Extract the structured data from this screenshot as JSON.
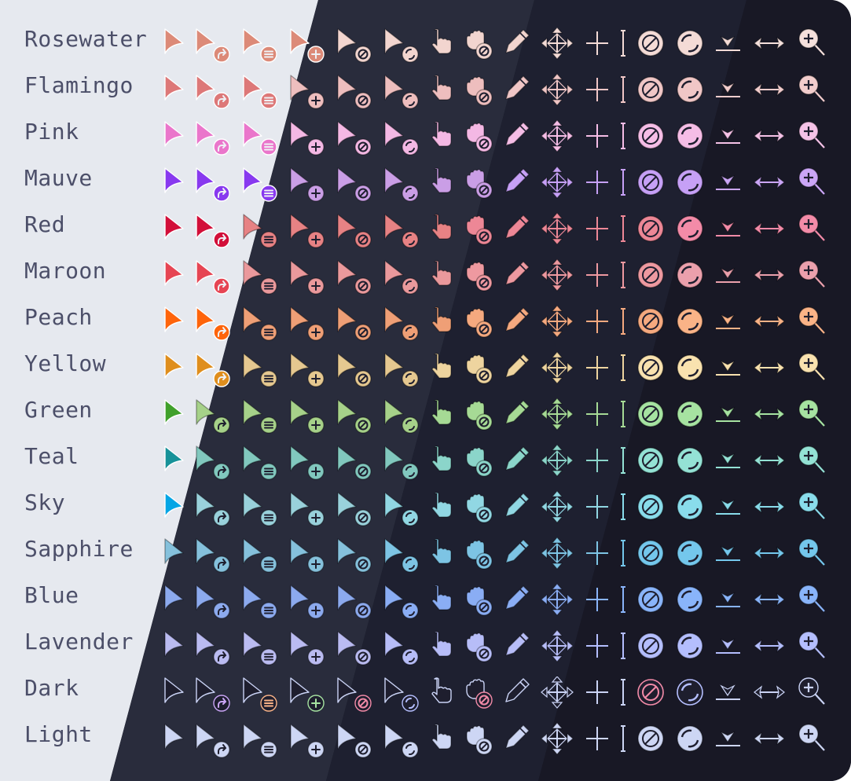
{
  "backgrounds": {
    "latte": "#e6e9ef",
    "frappe": "#292c3c",
    "macchiato": "#1e2030",
    "mocha": "#181825"
  },
  "label_color": "#4c4f69",
  "columns": [
    "arrow",
    "arrow-redo",
    "arrow-menu",
    "arrow-plus",
    "arrow-not-allowed",
    "arrow-progress",
    "pointing-hand",
    "grab-not-allowed",
    "pencil",
    "move",
    "crosshair",
    "text-beam",
    "not-allowed",
    "progress",
    "bottom-edge",
    "ew-resize",
    "zoom-in"
  ],
  "dark_accents": {
    "arrow-redo": "#cba6f7",
    "arrow-menu": "#fab387",
    "arrow-plus": "#a6e3a1",
    "arrow-not-allowed": "#f38ba8",
    "arrow-progress": "#b4befe",
    "grab-not-allowed": "#f38ba8",
    "not-allowed": "#f38ba8",
    "progress": "#b4befe"
  },
  "rows": [
    {
      "label": "Rosewater",
      "colors": {
        "latte": "#dc8a78",
        "frappe": "#f2d5cf",
        "macchiato": "#f4dbd6",
        "mocha": "#f5e0dc"
      }
    },
    {
      "label": "Flamingo",
      "colors": {
        "latte": "#dd7878",
        "frappe": "#eebebe",
        "macchiato": "#f0c6c6",
        "mocha": "#f2cdcd"
      }
    },
    {
      "label": "Pink",
      "colors": {
        "latte": "#ea76cb",
        "frappe": "#f4b8e4",
        "macchiato": "#f5bde6",
        "mocha": "#f5c2e7"
      }
    },
    {
      "label": "Mauve",
      "colors": {
        "latte": "#8839ef",
        "frappe": "#ca9ee6",
        "macchiato": "#c6a0f6",
        "mocha": "#cba6f7"
      }
    },
    {
      "label": "Red",
      "colors": {
        "latte": "#d20f39",
        "frappe": "#e78284",
        "macchiato": "#ed8796",
        "mocha": "#f38ba8"
      }
    },
    {
      "label": "Maroon",
      "colors": {
        "latte": "#e64553",
        "frappe": "#ea999c",
        "macchiato": "#ee99a0",
        "mocha": "#eba0ac"
      }
    },
    {
      "label": "Peach",
      "colors": {
        "latte": "#fe640b",
        "frappe": "#ef9f76",
        "macchiato": "#f5a97f",
        "mocha": "#fab387"
      }
    },
    {
      "label": "Yellow",
      "colors": {
        "latte": "#df8e1d",
        "frappe": "#e5c890",
        "macchiato": "#eed49f",
        "mocha": "#f9e2af"
      }
    },
    {
      "label": "Green",
      "colors": {
        "latte": "#40a02b",
        "frappe": "#a6d189",
        "macchiato": "#a6da95",
        "mocha": "#a6e3a1"
      }
    },
    {
      "label": "Teal",
      "colors": {
        "latte": "#179299",
        "frappe": "#81c8be",
        "macchiato": "#8bd5ca",
        "mocha": "#94e2d5"
      }
    },
    {
      "label": "Sky",
      "colors": {
        "latte": "#04a5e5",
        "frappe": "#99d1db",
        "macchiato": "#91d7e3",
        "mocha": "#89dceb"
      }
    },
    {
      "label": "Sapphire",
      "colors": {
        "latte": "#209fb5",
        "frappe": "#85c1dc",
        "macchiato": "#7dc4e4",
        "mocha": "#74c7ec"
      }
    },
    {
      "label": "Blue",
      "colors": {
        "latte": "#1e66f5",
        "frappe": "#8caaee",
        "macchiato": "#8aadf4",
        "mocha": "#89b4fa"
      }
    },
    {
      "label": "Lavender",
      "colors": {
        "latte": "#7287fd",
        "frappe": "#babbf1",
        "macchiato": "#b7bdf8",
        "mocha": "#b4befe"
      }
    },
    {
      "label": "Dark",
      "style": "outline",
      "colors": {
        "latte": "#cad3f5",
        "frappe": "#cad3f5",
        "macchiato": "#cad3f5",
        "mocha": "#cad3f5"
      }
    },
    {
      "label": "Light",
      "style": "light",
      "colors": {
        "latte": "#cdd6f4",
        "frappe": "#cdd6f4",
        "macchiato": "#cdd6f4",
        "mocha": "#cdd6f4"
      }
    }
  ]
}
